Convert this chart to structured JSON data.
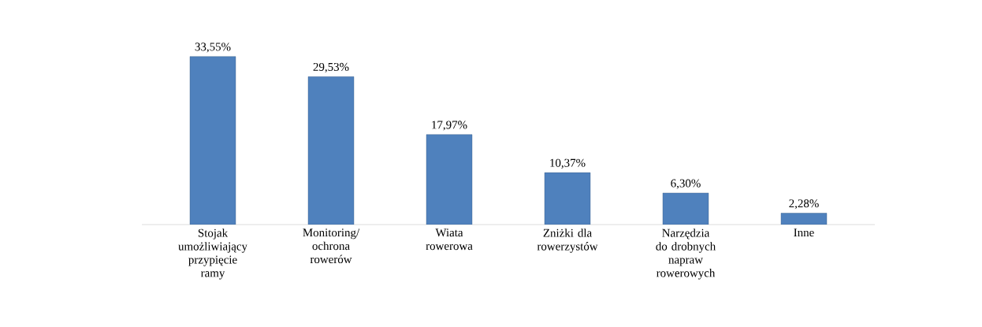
{
  "chart_data": {
    "type": "bar",
    "categories": [
      "Stojak umożliwiający przypięcie ramy",
      "Monitoring/ ochrona rowerów",
      "Wiata rowerowa",
      "Zniżki dla rowerzystów",
      "Narzędzia do drobnych napraw rowerowych",
      "Inne"
    ],
    "values": [
      33.55,
      29.53,
      17.97,
      10.37,
      6.3,
      2.28
    ],
    "value_labels": [
      "33,55%",
      "29,53%",
      "17,97%",
      "10,37%",
      "6,30%",
      "2,28%"
    ],
    "color": "#4f81bd",
    "tick_labels": "x"
  }
}
